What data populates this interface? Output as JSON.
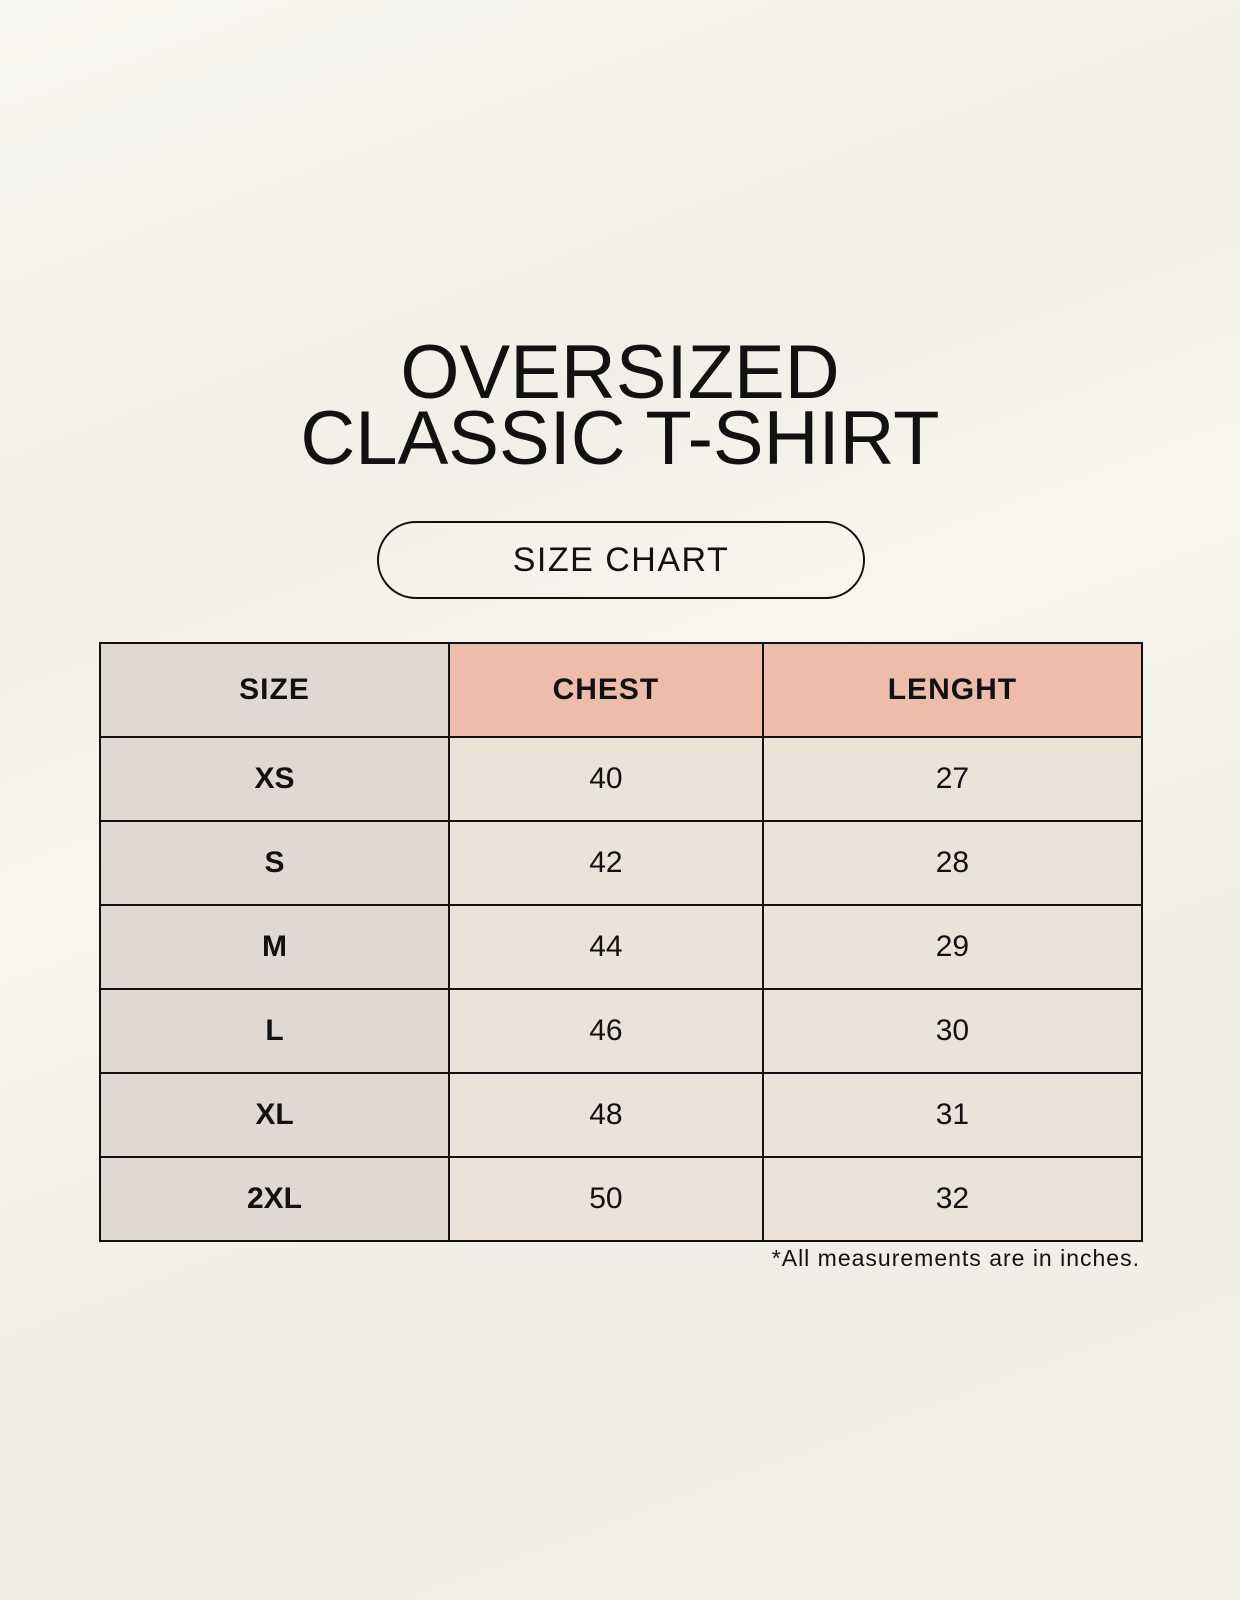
{
  "title": {
    "line1": "OVERSIZED",
    "line2": "CLASSIC T-SHIRT"
  },
  "badge": "SIZE CHART",
  "table": {
    "headers": [
      "SIZE",
      "CHEST",
      "LENGHT"
    ],
    "rows": [
      [
        "XS",
        "40",
        "27"
      ],
      [
        "S",
        "42",
        "28"
      ],
      [
        "M",
        "44",
        "29"
      ],
      [
        "L",
        "46",
        "30"
      ],
      [
        "XL",
        "48",
        "31"
      ],
      [
        "2XL",
        "50",
        "32"
      ]
    ]
  },
  "footnote": "*All measurements are in inches.",
  "colors": {
    "size_column": "#e0d9d3",
    "header_accent": "#edbcad",
    "value_cells": "#ebe3d8"
  }
}
